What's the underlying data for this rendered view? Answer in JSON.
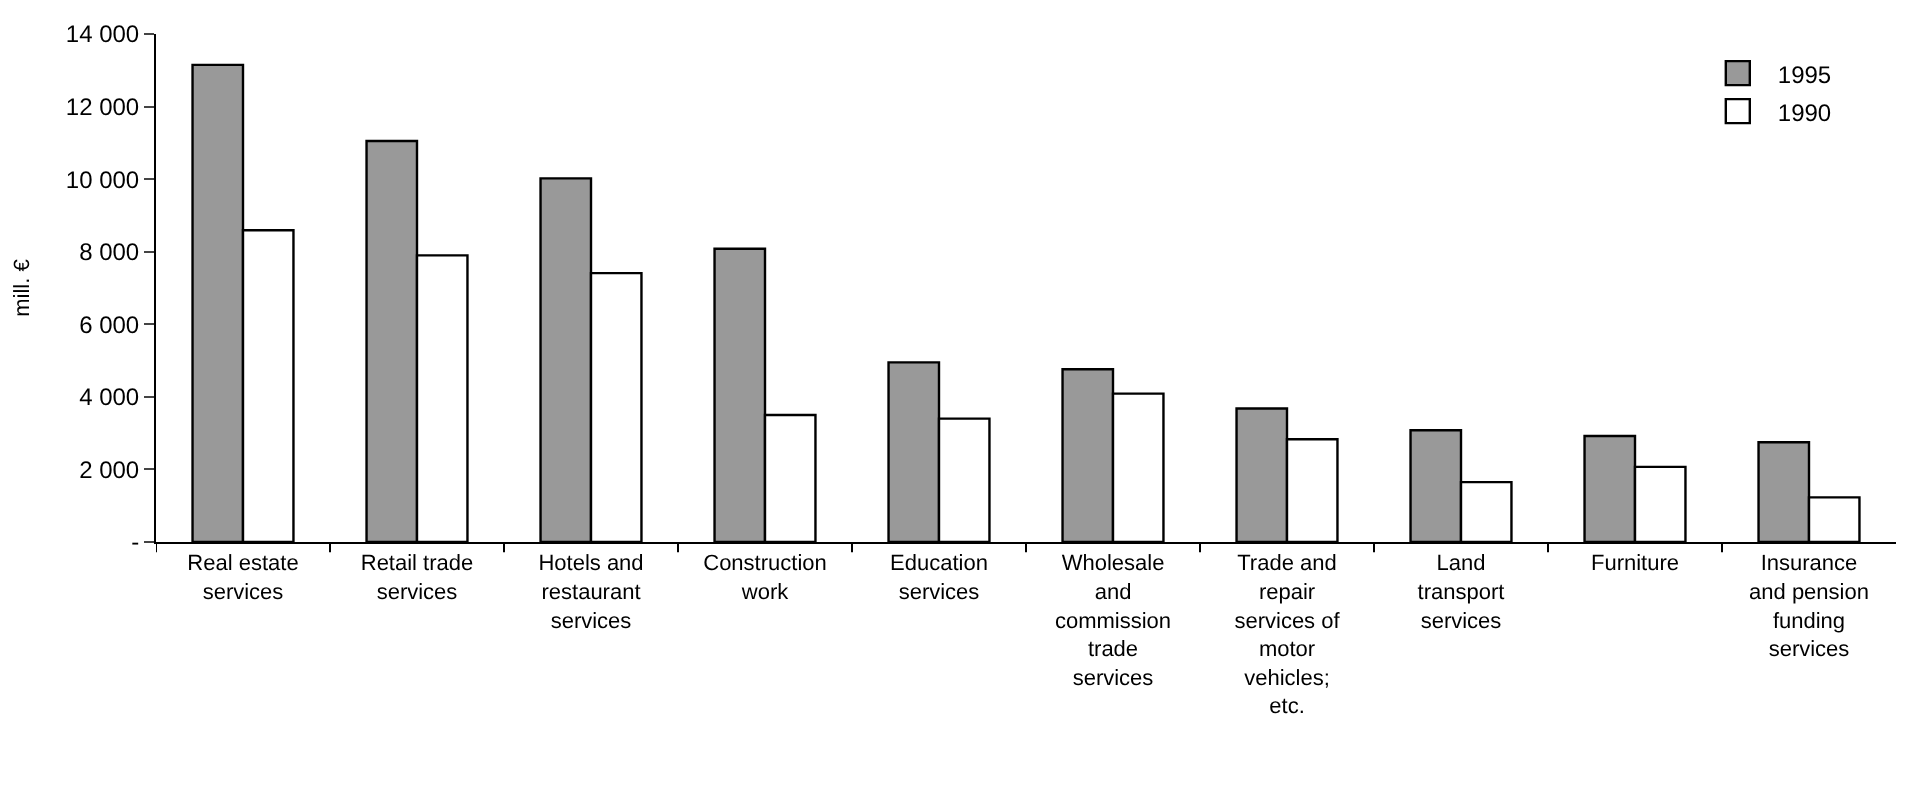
{
  "chart_data": {
    "type": "bar",
    "ylabel": "mill. €",
    "categories": [
      "Real estate services",
      "Retail trade services",
      "Hotels and restaurant services",
      "Construction work",
      "Education services",
      "Wholesale and commission trade services",
      "Trade and repair services of motor vehicles; etc.",
      "Land transport services",
      "Furniture",
      "Insurance and pension funding services"
    ],
    "series": [
      {
        "name": "1995",
        "color": "#999999",
        "values": [
          13150,
          11050,
          10020,
          8080,
          4950,
          4760,
          3680,
          3080,
          2920,
          2750
        ]
      },
      {
        "name": "1990",
        "color": "#ffffff",
        "values": [
          8590,
          7900,
          7410,
          3500,
          3400,
          4090,
          2830,
          1650,
          2070,
          1230
        ]
      }
    ],
    "ylim": [
      0,
      14000
    ],
    "yticks": [
      {
        "value": 0,
        "label": "-"
      },
      {
        "value": 2000,
        "label": "2 000"
      },
      {
        "value": 4000,
        "label": "4 000"
      },
      {
        "value": 6000,
        "label": "6 000"
      },
      {
        "value": 8000,
        "label": "8 000"
      },
      {
        "value": 10000,
        "label": "10 000"
      },
      {
        "value": 12000,
        "label": "12 000"
      },
      {
        "value": 14000,
        "label": "14 000"
      }
    ],
    "legend": "top right"
  }
}
